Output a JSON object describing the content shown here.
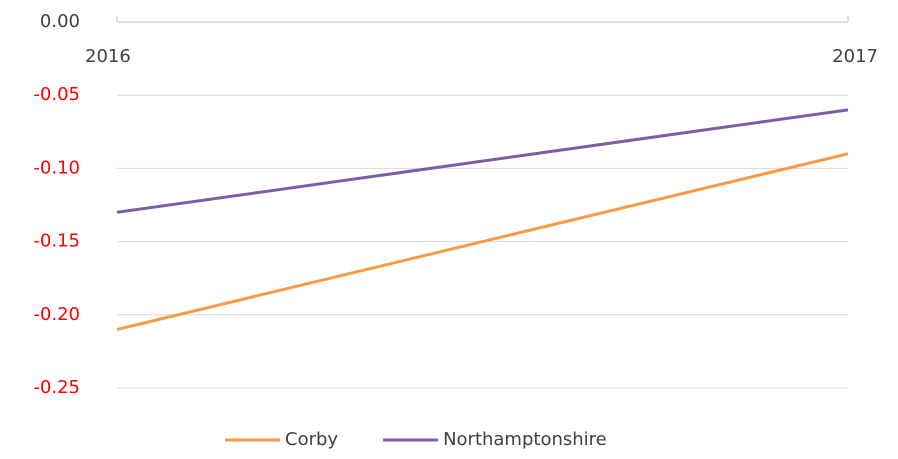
{
  "chart_data": {
    "type": "line",
    "categories": [
      "2016",
      "2017"
    ],
    "series": [
      {
        "name": "Corby",
        "color": "#f79a46",
        "values": [
          -0.21,
          -0.09
        ]
      },
      {
        "name": "Northamptonshire",
        "color": "#7b5ea7",
        "values": [
          -0.13,
          -0.06
        ]
      }
    ],
    "ylim": [
      -0.25,
      0
    ],
    "yticks": [
      {
        "value": 0,
        "label": "0.00"
      },
      -0.05,
      {
        "value": -0.1,
        "label": "-0.10"
      },
      -0.15,
      {
        "value": -0.2,
        "label": "-0.20"
      },
      -0.25
    ],
    "grid": true,
    "tick_color": "#404040",
    "negative_tick_color": "#ff0000",
    "legend": "bottom"
  }
}
